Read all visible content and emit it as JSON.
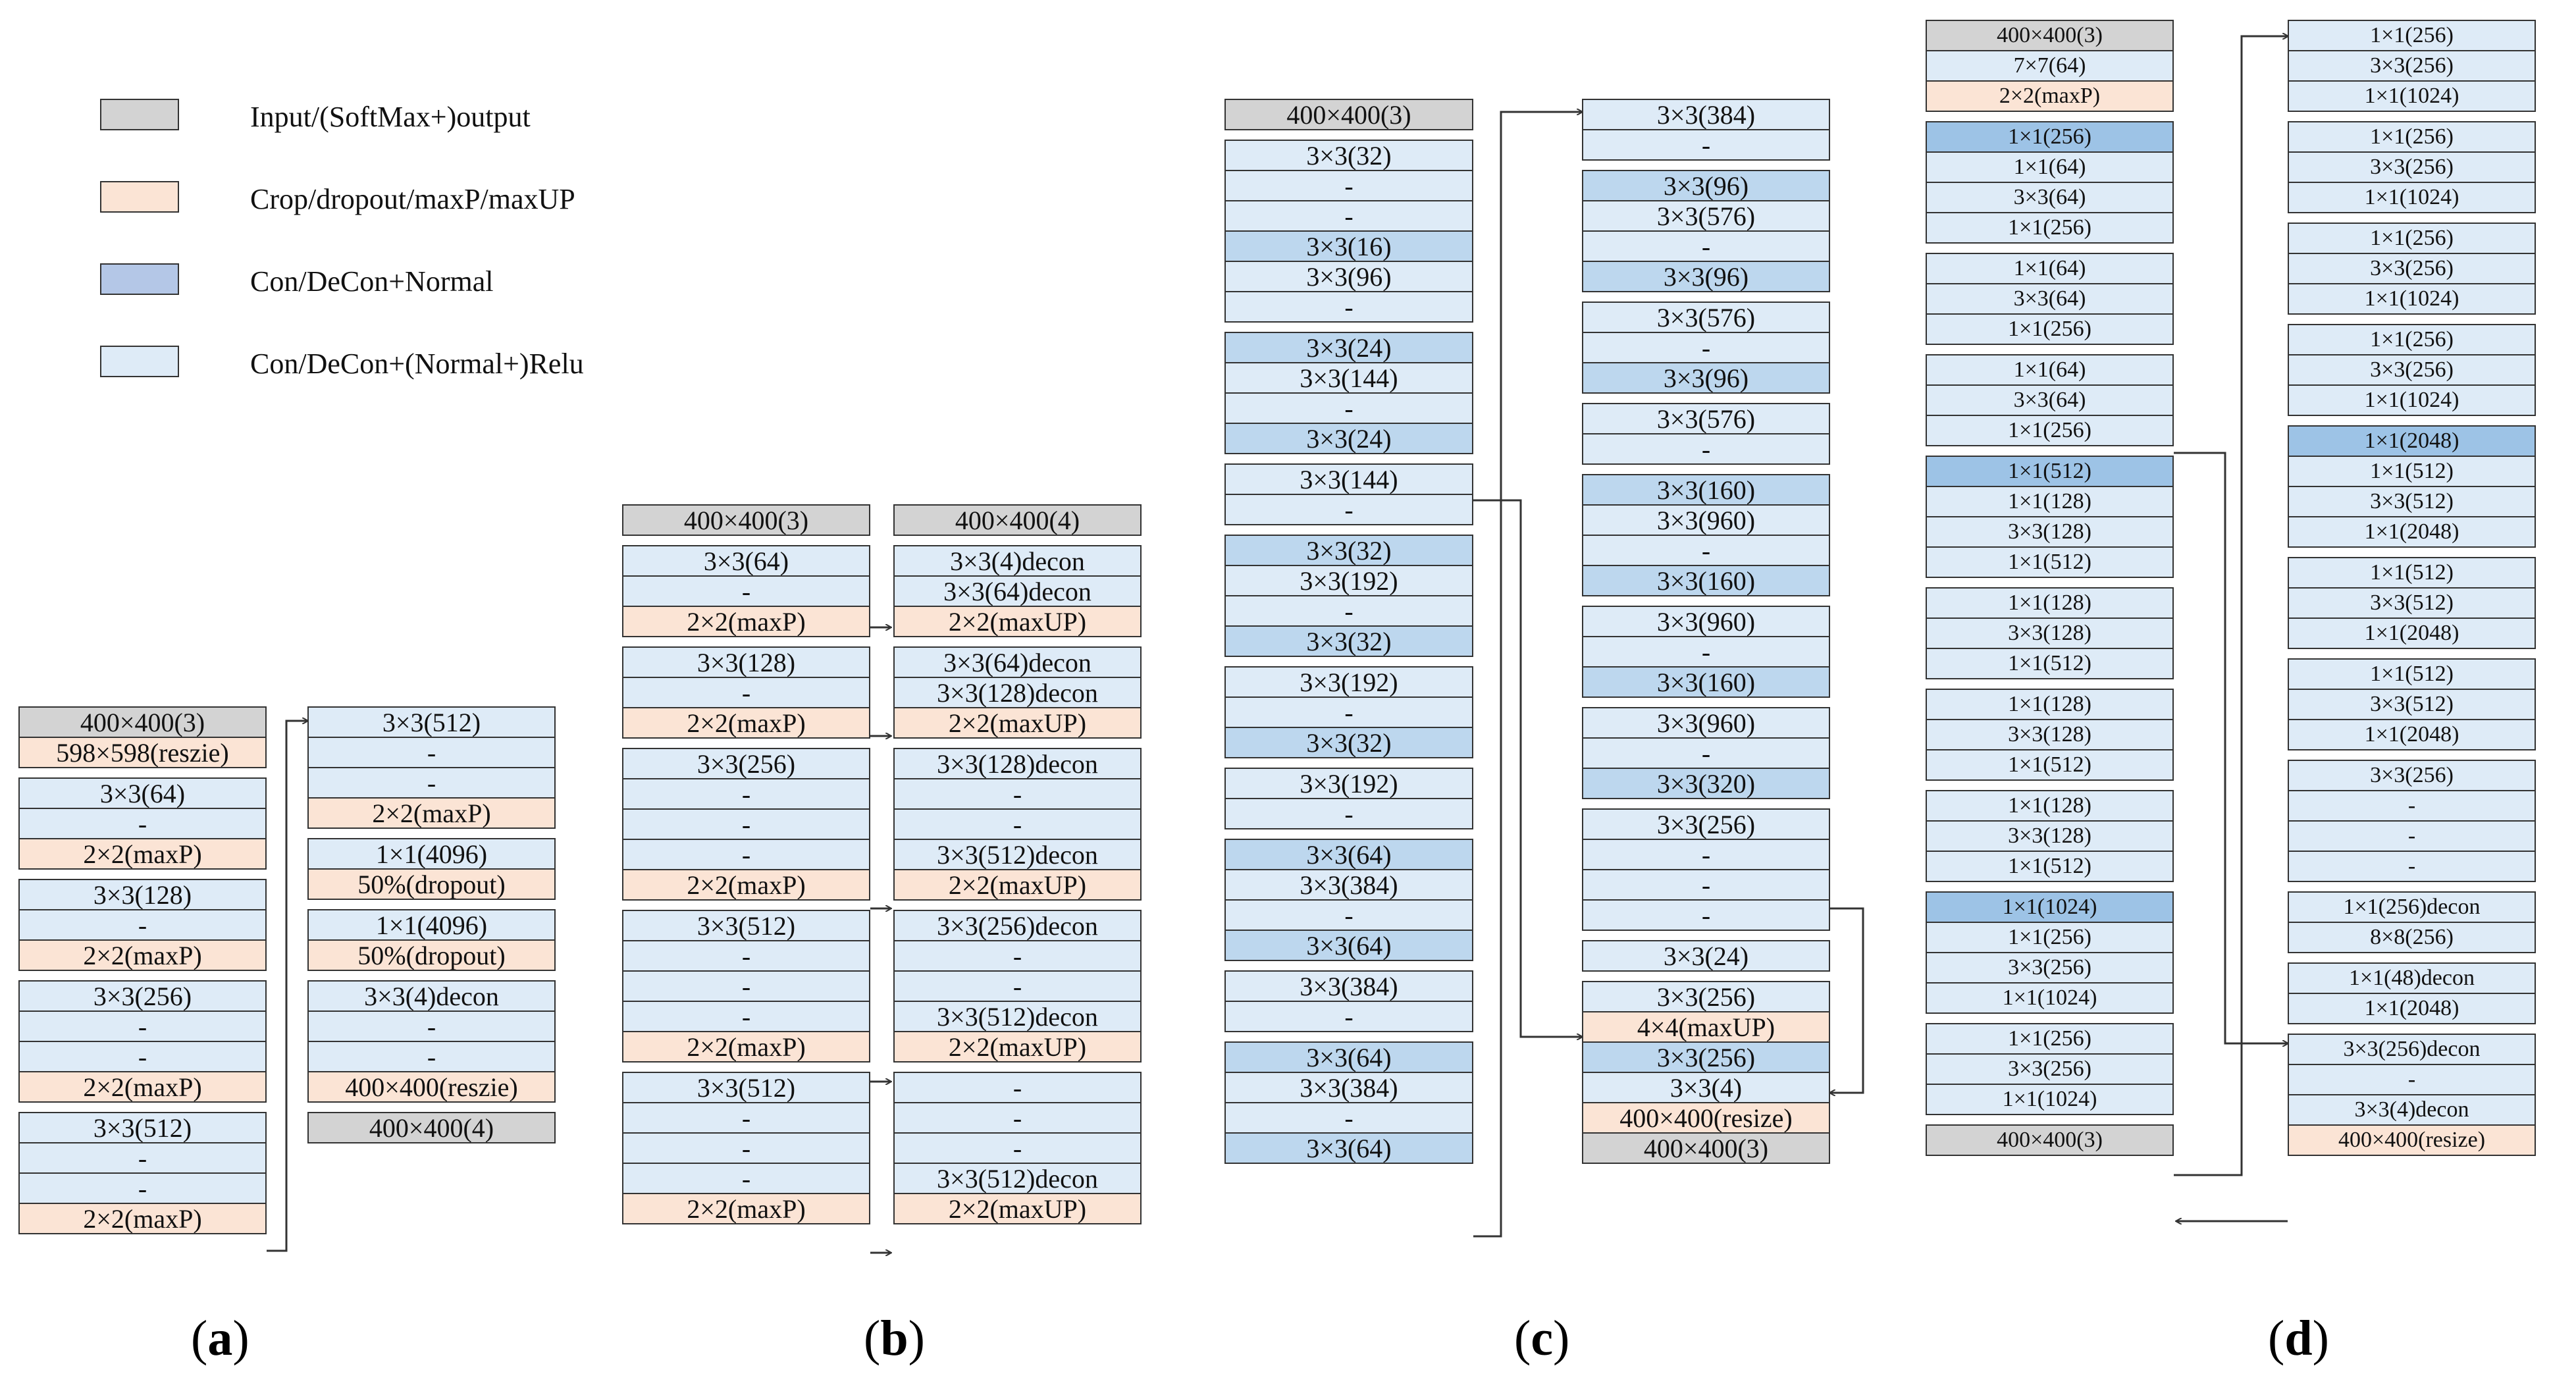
{
  "legend": [
    {
      "type": "input",
      "label": "Input/(SoftMax+)output"
    },
    {
      "type": "crop",
      "label": "Crop/dropout/maxP/maxUP"
    },
    {
      "type": "conv",
      "label": "Con/DeCon+Normal"
    },
    {
      "type": "relu",
      "label": "Con/DeCon+(Normal+)Relu"
    }
  ],
  "panels": {
    "a": {
      "label_open": "(",
      "label_letter": "a",
      "label_close": ")"
    },
    "b": {
      "label_open": "(",
      "label_letter": "b",
      "label_close": ")"
    },
    "c": {
      "label_open": "(",
      "label_letter": "c",
      "label_close": ")"
    },
    "d": {
      "label_open": "(",
      "label_letter": "d",
      "label_close": ")"
    }
  },
  "columns": {
    "a1": [
      [
        "input",
        "400×400(3)"
      ],
      [
        "crop",
        "598×598(reszie)"
      ],
      null,
      [
        "relu",
        "3×3(64)"
      ],
      [
        "relu",
        "-"
      ],
      [
        "crop",
        "2×2(maxP)"
      ],
      null,
      [
        "relu",
        "3×3(128)"
      ],
      [
        "relu",
        "-"
      ],
      [
        "crop",
        "2×2(maxP)"
      ],
      null,
      [
        "relu",
        "3×3(256)"
      ],
      [
        "relu",
        "-"
      ],
      [
        "relu",
        "-"
      ],
      [
        "crop",
        "2×2(maxP)"
      ],
      null,
      [
        "relu",
        "3×3(512)"
      ],
      [
        "relu",
        "-"
      ],
      [
        "relu",
        "-"
      ],
      [
        "crop",
        "2×2(maxP)"
      ]
    ],
    "a2": [
      [
        "relu",
        "3×3(512)"
      ],
      [
        "relu",
        "-"
      ],
      [
        "relu",
        "-"
      ],
      [
        "crop",
        "2×2(maxP)"
      ],
      null,
      [
        "relu",
        "1×1(4096)"
      ],
      [
        "crop",
        "50%(dropout)"
      ],
      null,
      [
        "relu",
        "1×1(4096)"
      ],
      [
        "crop",
        "50%(dropout)"
      ],
      null,
      [
        "relu",
        "3×3(4)decon"
      ],
      [
        "relu",
        "-"
      ],
      [
        "relu",
        "-"
      ],
      [
        "crop",
        "400×400(reszie)"
      ],
      null,
      [
        "input",
        "400×400(4)"
      ]
    ],
    "b1": [
      [
        "input",
        "400×400(3)"
      ],
      null,
      [
        "relu",
        "3×3(64)"
      ],
      [
        "relu",
        "-"
      ],
      [
        "crop",
        "2×2(maxP)"
      ],
      null,
      [
        "relu",
        "3×3(128)"
      ],
      [
        "relu",
        "-"
      ],
      [
        "crop",
        "2×2(maxP)"
      ],
      null,
      [
        "relu",
        "3×3(256)"
      ],
      [
        "relu",
        "-"
      ],
      [
        "relu",
        "-"
      ],
      [
        "relu",
        "-"
      ],
      [
        "crop",
        "2×2(maxP)"
      ],
      null,
      [
        "relu",
        "3×3(512)"
      ],
      [
        "relu",
        "-"
      ],
      [
        "relu",
        "-"
      ],
      [
        "relu",
        "-"
      ],
      [
        "crop",
        "2×2(maxP)"
      ],
      null,
      [
        "relu",
        "3×3(512)"
      ],
      [
        "relu",
        "-"
      ],
      [
        "relu",
        "-"
      ],
      [
        "relu",
        "-"
      ],
      [
        "crop",
        "2×2(maxP)"
      ]
    ],
    "b2": [
      [
        "input",
        "400×400(4)"
      ],
      null,
      [
        "relu",
        "3×3(4)decon"
      ],
      [
        "relu",
        "3×3(64)decon"
      ],
      [
        "crop",
        "2×2(maxUP)"
      ],
      null,
      [
        "relu",
        "3×3(64)decon"
      ],
      [
        "relu",
        "3×3(128)decon"
      ],
      [
        "crop",
        "2×2(maxUP)"
      ],
      null,
      [
        "relu",
        "3×3(128)decon"
      ],
      [
        "relu",
        "-"
      ],
      [
        "relu",
        "-"
      ],
      [
        "relu",
        "3×3(512)decon"
      ],
      [
        "crop",
        "2×2(maxUP)"
      ],
      null,
      [
        "relu",
        "3×3(256)decon"
      ],
      [
        "relu",
        "-"
      ],
      [
        "relu",
        "-"
      ],
      [
        "relu",
        "3×3(512)decon"
      ],
      [
        "crop",
        "2×2(maxUP)"
      ],
      null,
      [
        "relu",
        "-"
      ],
      [
        "relu",
        "-"
      ],
      [
        "relu",
        "-"
      ],
      [
        "relu",
        "3×3(512)decon"
      ],
      [
        "crop",
        "2×2(maxUP)"
      ]
    ],
    "c1": [
      [
        "input",
        "400×400(3)"
      ],
      null,
      [
        "relu",
        "3×3(32)"
      ],
      [
        "relu",
        "-"
      ],
      [
        "relu",
        "-"
      ],
      [
        "conv",
        "3×3(16)"
      ],
      [
        "relu",
        "3×3(96)"
      ],
      [
        "relu",
        "-"
      ],
      null,
      [
        "conv",
        "3×3(24)"
      ],
      [
        "relu",
        "3×3(144)"
      ],
      [
        "relu",
        "-"
      ],
      [
        "conv",
        "3×3(24)"
      ],
      null,
      [
        "relu",
        "3×3(144)"
      ],
      [
        "relu",
        "-"
      ],
      null,
      [
        "conv",
        "3×3(32)"
      ],
      [
        "relu",
        "3×3(192)"
      ],
      [
        "relu",
        "-"
      ],
      [
        "conv",
        "3×3(32)"
      ],
      null,
      [
        "relu",
        "3×3(192)"
      ],
      [
        "relu",
        "-"
      ],
      [
        "conv",
        "3×3(32)"
      ],
      null,
      [
        "relu",
        "3×3(192)"
      ],
      [
        "relu",
        "-"
      ],
      null,
      [
        "conv",
        "3×3(64)"
      ],
      [
        "relu",
        "3×3(384)"
      ],
      [
        "relu",
        "-"
      ],
      [
        "conv",
        "3×3(64)"
      ],
      null,
      [
        "relu",
        "3×3(384)"
      ],
      [
        "relu",
        "-"
      ],
      null,
      [
        "conv",
        "3×3(64)"
      ],
      [
        "relu",
        "3×3(384)"
      ],
      [
        "relu",
        "-"
      ],
      [
        "conv",
        "3×3(64)"
      ]
    ],
    "c2": [
      [
        "relu",
        "3×3(384)"
      ],
      [
        "relu",
        "-"
      ],
      null,
      [
        "conv",
        "3×3(96)"
      ],
      [
        "relu",
        "3×3(576)"
      ],
      [
        "relu",
        "-"
      ],
      [
        "conv",
        "3×3(96)"
      ],
      null,
      [
        "relu",
        "3×3(576)"
      ],
      [
        "relu",
        "-"
      ],
      [
        "conv",
        "3×3(96)"
      ],
      null,
      [
        "relu",
        "3×3(576)"
      ],
      [
        "relu",
        "-"
      ],
      null,
      [
        "conv",
        "3×3(160)"
      ],
      [
        "relu",
        "3×3(960)"
      ],
      [
        "relu",
        "-"
      ],
      [
        "conv",
        "3×3(160)"
      ],
      null,
      [
        "relu",
        "3×3(960)"
      ],
      [
        "relu",
        "-"
      ],
      [
        "conv",
        "3×3(160)"
      ],
      null,
      [
        "relu",
        "3×3(960)"
      ],
      [
        "relu",
        "-"
      ],
      [
        "conv",
        "3×3(320)"
      ],
      null,
      [
        "relu",
        "3×3(256)"
      ],
      [
        "relu",
        "-"
      ],
      [
        "relu",
        "-"
      ],
      [
        "relu",
        "-"
      ],
      null,
      [
        "relu",
        "3×3(24)"
      ],
      null,
      [
        "relu",
        "3×3(256)"
      ],
      [
        "crop",
        "4×4(maxUP)"
      ],
      [
        "conv",
        "3×3(256)"
      ],
      [
        "relu",
        "3×3(4)"
      ],
      [
        "crop",
        "400×400(resize)"
      ],
      [
        "input",
        "400×400(3)"
      ]
    ],
    "d1": [
      [
        "input",
        "400×400(3)"
      ],
      [
        "relu",
        "7×7(64)"
      ],
      [
        "crop",
        "2×2(maxP)"
      ],
      null,
      [
        "dark",
        "1×1(256)"
      ],
      [
        "relu",
        "1×1(64)"
      ],
      [
        "relu",
        "3×3(64)"
      ],
      [
        "relu",
        "1×1(256)"
      ],
      null,
      [
        "relu",
        "1×1(64)"
      ],
      [
        "relu",
        "3×3(64)"
      ],
      [
        "relu",
        "1×1(256)"
      ],
      null,
      [
        "relu",
        "1×1(64)"
      ],
      [
        "relu",
        "3×3(64)"
      ],
      [
        "relu",
        "1×1(256)"
      ],
      null,
      [
        "dark",
        "1×1(512)"
      ],
      [
        "relu",
        "1×1(128)"
      ],
      [
        "relu",
        "3×3(128)"
      ],
      [
        "relu",
        "1×1(512)"
      ],
      null,
      [
        "relu",
        "1×1(128)"
      ],
      [
        "relu",
        "3×3(128)"
      ],
      [
        "relu",
        "1×1(512)"
      ],
      null,
      [
        "relu",
        "1×1(128)"
      ],
      [
        "relu",
        "3×3(128)"
      ],
      [
        "relu",
        "1×1(512)"
      ],
      null,
      [
        "relu",
        "1×1(128)"
      ],
      [
        "relu",
        "3×3(128)"
      ],
      [
        "relu",
        "1×1(512)"
      ],
      null,
      [
        "dark",
        "1×1(1024)"
      ],
      [
        "relu",
        "1×1(256)"
      ],
      [
        "relu",
        "3×3(256)"
      ],
      [
        "relu",
        "1×1(1024)"
      ],
      null,
      [
        "relu",
        "1×1(256)"
      ],
      [
        "relu",
        "3×3(256)"
      ],
      [
        "relu",
        "1×1(1024)"
      ],
      null,
      [
        "input",
        "400×400(3)"
      ]
    ],
    "d2": [
      [
        "relu",
        "1×1(256)"
      ],
      [
        "relu",
        "3×3(256)"
      ],
      [
        "relu",
        "1×1(1024)"
      ],
      null,
      [
        "relu",
        "1×1(256)"
      ],
      [
        "relu",
        "3×3(256)"
      ],
      [
        "relu",
        "1×1(1024)"
      ],
      null,
      [
        "relu",
        "1×1(256)"
      ],
      [
        "relu",
        "3×3(256)"
      ],
      [
        "relu",
        "1×1(1024)"
      ],
      null,
      [
        "relu",
        "1×1(256)"
      ],
      [
        "relu",
        "3×3(256)"
      ],
      [
        "relu",
        "1×1(1024)"
      ],
      null,
      [
        "dark",
        "1×1(2048)"
      ],
      [
        "relu",
        "1×1(512)"
      ],
      [
        "relu",
        "3×3(512)"
      ],
      [
        "relu",
        "1×1(2048)"
      ],
      null,
      [
        "relu",
        "1×1(512)"
      ],
      [
        "relu",
        "3×3(512)"
      ],
      [
        "relu",
        "1×1(2048)"
      ],
      null,
      [
        "relu",
        "1×1(512)"
      ],
      [
        "relu",
        "3×3(512)"
      ],
      [
        "relu",
        "1×1(2048)"
      ],
      null,
      [
        "relu",
        "3×3(256)"
      ],
      [
        "relu",
        "-"
      ],
      [
        "relu",
        "-"
      ],
      [
        "relu",
        "-"
      ],
      null,
      [
        "relu",
        "1×1(256)decon"
      ],
      [
        "relu",
        "8×8(256)"
      ],
      null,
      [
        "relu",
        "1×1(48)decon"
      ],
      [
        "relu",
        "1×1(2048)"
      ],
      null,
      [
        "relu",
        "3×3(256)decon"
      ],
      [
        "relu",
        "-"
      ],
      [
        "relu",
        "3×3(4)decon"
      ],
      [
        "crop",
        "400×400(resize)"
      ]
    ]
  }
}
